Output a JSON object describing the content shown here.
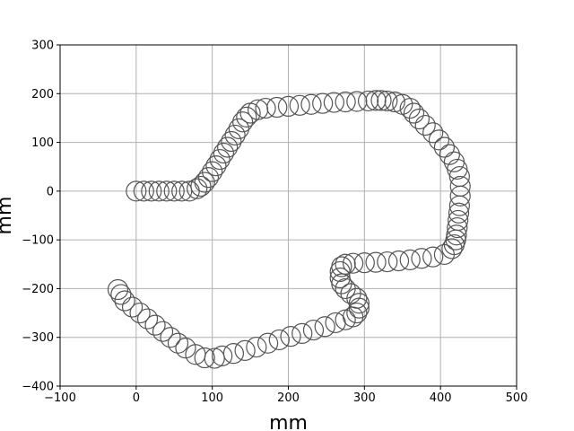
{
  "chart_data": {
    "type": "scatter",
    "title": "",
    "xlabel": "mm",
    "ylabel": "mm",
    "xlim": [
      -100,
      500
    ],
    "ylim": [
      -400,
      300
    ],
    "xticks": [
      -100,
      0,
      100,
      200,
      300,
      400,
      500
    ],
    "yticks": [
      -400,
      -300,
      -200,
      -100,
      0,
      100,
      200,
      300
    ],
    "xtick_labels": [
      "−100",
      "0",
      "100",
      "200",
      "300",
      "400",
      "500"
    ],
    "ytick_labels": [
      "−400",
      "−300",
      "−200",
      "−100",
      "0",
      "100",
      "200",
      "300"
    ],
    "grid": true,
    "marker": "open-circle",
    "marker_color": "#555555",
    "series": [
      {
        "x": [
          0,
          10,
          20,
          30,
          40,
          50,
          60,
          70,
          80,
          85,
          90,
          95,
          100,
          105,
          110,
          115,
          120,
          125,
          130,
          135,
          140,
          145,
          150,
          160,
          170,
          185,
          200,
          215,
          230,
          245,
          260,
          275,
          290,
          305,
          315,
          322,
          330,
          340,
          350,
          360,
          365,
          372,
          380,
          390,
          398,
          405,
          412,
          418,
          422,
          425,
          426,
          426,
          425,
          424,
          423,
          422,
          421,
          420,
          418,
          415,
          405,
          390,
          375,
          360,
          345,
          330,
          315,
          300,
          285,
          275,
          270,
          268,
          268,
          270,
          275,
          282,
          290,
          293,
          293,
          290,
          285,
          275,
          262,
          248,
          233,
          218,
          203,
          188,
          173,
          158,
          143,
          128,
          113,
          103,
          90,
          78,
          65,
          55,
          45,
          35,
          25,
          15,
          5,
          -5,
          -15,
          -20,
          -24
        ],
        "y": [
          0,
          0,
          0,
          0,
          0,
          0,
          0,
          0,
          5,
          10,
          18,
          28,
          40,
          52,
          65,
          78,
          90,
          102,
          115,
          128,
          142,
          152,
          160,
          167,
          170,
          172,
          174,
          176,
          178,
          180,
          182,
          183,
          184,
          185,
          186,
          186,
          185,
          183,
          178,
          170,
          160,
          148,
          135,
          120,
          105,
          90,
          75,
          60,
          45,
          30,
          10,
          -10,
          -30,
          -45,
          -60,
          -75,
          -90,
          -100,
          -110,
          -118,
          -130,
          -135,
          -138,
          -141,
          -143,
          -145,
          -146,
          -147,
          -148,
          -150,
          -155,
          -165,
          -178,
          -190,
          -200,
          -210,
          -220,
          -230,
          -240,
          -250,
          -258,
          -264,
          -270,
          -278,
          -285,
          -292,
          -298,
          -305,
          -312,
          -320,
          -327,
          -333,
          -338,
          -343,
          -342,
          -335,
          -322,
          -312,
          -300,
          -288,
          -275,
          -262,
          -250,
          -238,
          -225,
          -212,
          -202
        ]
      }
    ]
  }
}
